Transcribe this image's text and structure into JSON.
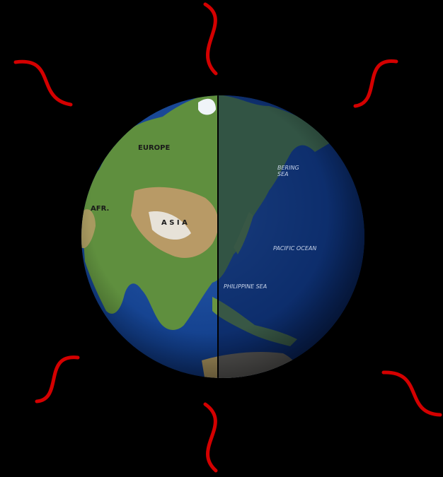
{
  "labels": {
    "europe": "EUROPE",
    "africa": "AFR.",
    "asia": "A S I A",
    "bering_sea": "BERING\nSEA",
    "pacific_ocean": "PACIFIC OCEAN",
    "philippine_sea": "PHILIPPINE SEA"
  }
}
